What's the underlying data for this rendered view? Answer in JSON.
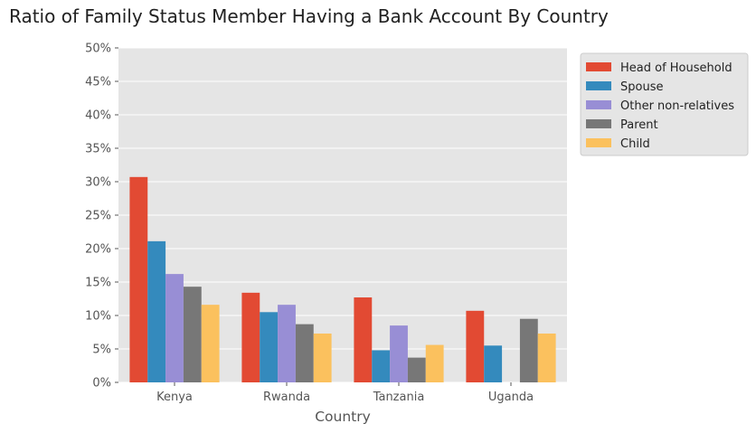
{
  "chart_data": {
    "type": "bar",
    "title": "Ratio of Family Status Member Having a Bank Account By Country",
    "xlabel": "Country",
    "ylabel": "",
    "categories": [
      "Kenya",
      "Rwanda",
      "Tanzania",
      "Uganda"
    ],
    "series": [
      {
        "name": "Head of Household",
        "color": "#E24A33",
        "values": [
          0.307,
          0.134,
          0.127,
          0.107
        ]
      },
      {
        "name": "Spouse",
        "color": "#348ABD",
        "values": [
          0.211,
          0.105,
          0.048,
          0.055
        ]
      },
      {
        "name": "Other non-relatives",
        "color": "#988ED5",
        "values": [
          0.162,
          0.116,
          0.085,
          0.0
        ]
      },
      {
        "name": "Parent",
        "color": "#777777",
        "values": [
          0.143,
          0.087,
          0.037,
          0.095
        ]
      },
      {
        "name": "Child",
        "color": "#FBC15E",
        "values": [
          0.116,
          0.073,
          0.056,
          0.073
        ]
      }
    ],
    "ylim": [
      0,
      0.5
    ],
    "yticks": [
      "0%",
      "5%",
      "10%",
      "15%",
      "20%",
      "25%",
      "30%",
      "35%",
      "40%",
      "45%",
      "50%"
    ],
    "grid": true,
    "legend_position": "outside-top-right"
  }
}
